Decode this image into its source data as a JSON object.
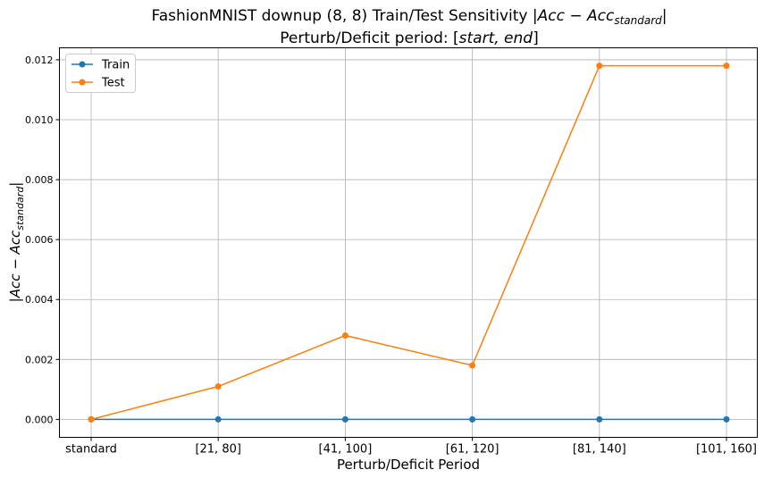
{
  "chart_data": {
    "type": "line",
    "title_line1_prefix": "FashionMNIST downup (8, 8) Train/Test Sensitivity |",
    "title_line1_math": "Acc − Acc",
    "title_line1_sub": "standard",
    "title_line1_suffix": "|",
    "title_line2_prefix": "Perturb/Deficit period: [",
    "title_line2_math": "start, end",
    "title_line2_suffix": "]",
    "xlabel": "Perturb/Deficit Period",
    "ylabel_math": "|Acc − Acc",
    "ylabel_sub": "standard",
    "ylabel_suffix": "|",
    "categories": [
      "standard",
      "[21, 80]",
      "[41, 100]",
      "[61, 120]",
      "[81, 140]",
      "[101, 160]"
    ],
    "ylim": [
      -0.0006,
      0.0124
    ],
    "yticks": [
      0.0,
      0.002,
      0.004,
      0.006,
      0.008,
      0.01,
      0.012
    ],
    "ytick_labels": [
      "0.000",
      "0.002",
      "0.004",
      "0.006",
      "0.008",
      "0.010",
      "0.012"
    ],
    "grid": true,
    "legend_position": "top-left",
    "series": [
      {
        "name": "Train",
        "color": "#1f77b4",
        "values": [
          0.0,
          0.0,
          0.0,
          0.0,
          0.0,
          0.0
        ]
      },
      {
        "name": "Test",
        "color": "#ff7f0e",
        "values": [
          0.0,
          0.0011,
          0.0028,
          0.0018,
          0.0118,
          0.0118
        ]
      }
    ]
  }
}
